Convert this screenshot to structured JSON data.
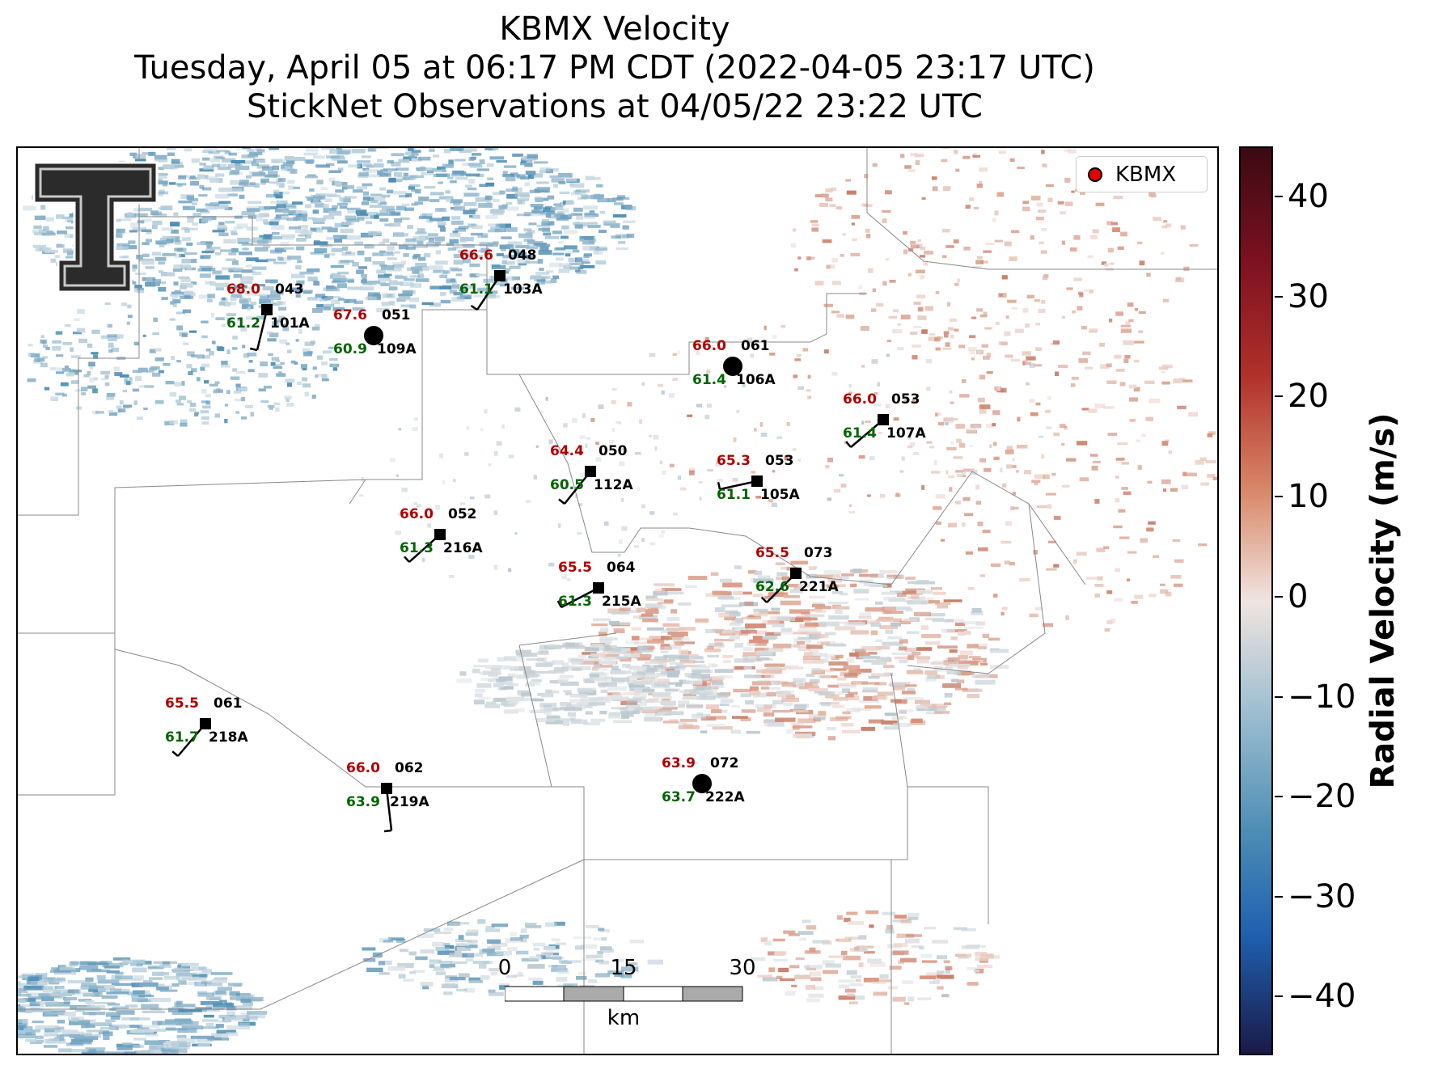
{
  "title": {
    "line1": "KBMX Velocity",
    "line2": "Tuesday, April 05 at 06:17 PM CDT (2022-04-05 23:17 UTC)",
    "line3": "StickNet Observations at 04/05/22 23:22 UTC"
  },
  "legend": {
    "label": "KBMX",
    "marker_color": "#e00000"
  },
  "colorbar": {
    "label": "Radial Velocity (m/s)",
    "ticks": [
      "40",
      "30",
      "20",
      "10",
      "0",
      "−10",
      "−20",
      "−30",
      "−40"
    ]
  },
  "scalebar": {
    "ticks": [
      "0",
      "15",
      "30"
    ],
    "unit": "km"
  },
  "stations": [
    {
      "id": "101A",
      "temp": "68.0",
      "dir": "043",
      "dew": "61.2",
      "marker": "square"
    },
    {
      "id": "109A",
      "temp": "67.6",
      "dir": "051",
      "dew": "60.9",
      "marker": "circle"
    },
    {
      "id": "103A",
      "temp": "66.6",
      "dir": "048",
      "dew": "61.1",
      "marker": "square"
    },
    {
      "id": "106A",
      "temp": "66.0",
      "dir": "061",
      "dew": "61.4",
      "marker": "circle"
    },
    {
      "id": "107A",
      "temp": "66.0",
      "dir": "053",
      "dew": "61.4",
      "marker": "square"
    },
    {
      "id": "112A",
      "temp": "64.4",
      "dir": "050",
      "dew": "60.5",
      "marker": "square"
    },
    {
      "id": "105A",
      "temp": "65.3",
      "dir": "053",
      "dew": "61.1",
      "marker": "square"
    },
    {
      "id": "216A",
      "temp": "66.0",
      "dir": "052",
      "dew": "61.3",
      "marker": "square"
    },
    {
      "id": "215A",
      "temp": "65.5",
      "dir": "064",
      "dew": "61.3",
      "marker": "square"
    },
    {
      "id": "221A",
      "temp": "65.5",
      "dir": "073",
      "dew": "62.6",
      "marker": "square"
    },
    {
      "id": "218A",
      "temp": "65.5",
      "dir": "061",
      "dew": "61.7",
      "marker": "square"
    },
    {
      "id": "219A",
      "temp": "66.0",
      "dir": "062",
      "dew": "63.9",
      "marker": "square"
    },
    {
      "id": "222A",
      "temp": "63.9",
      "dir": "072",
      "dew": "63.7",
      "marker": "circle"
    }
  ]
}
